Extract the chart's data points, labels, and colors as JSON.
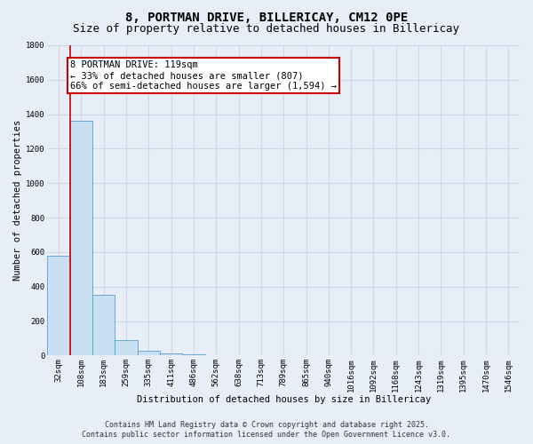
{
  "title_line1": "8, PORTMAN DRIVE, BILLERICAY, CM12 0PE",
  "title_line2": "Size of property relative to detached houses in Billericay",
  "xlabel": "Distribution of detached houses by size in Billericay",
  "ylabel": "Number of detached properties",
  "categories": [
    "32sqm",
    "108sqm",
    "183sqm",
    "259sqm",
    "335sqm",
    "411sqm",
    "486sqm",
    "562sqm",
    "638sqm",
    "713sqm",
    "789sqm",
    "865sqm",
    "940sqm",
    "1016sqm",
    "1092sqm",
    "1168sqm",
    "1243sqm",
    "1319sqm",
    "1395sqm",
    "1470sqm",
    "1546sqm"
  ],
  "values": [
    580,
    1360,
    350,
    90,
    30,
    15,
    5,
    0,
    0,
    0,
    0,
    0,
    0,
    0,
    0,
    0,
    0,
    0,
    0,
    0,
    0
  ],
  "bar_color": "#c9dff2",
  "bar_edge_color": "#5a9fd4",
  "background_color": "#e8eef8",
  "grid_color": "#d0d8e8",
  "annotation_box_text": "8 PORTMAN DRIVE: 119sqm\n← 33% of detached houses are smaller (807)\n66% of semi-detached houses are larger (1,594) →",
  "annotation_box_color": "#ffffff",
  "annotation_box_edge": "#cc0000",
  "vline_color": "#cc0000",
  "ylim": [
    0,
    1800
  ],
  "yticks": [
    0,
    200,
    400,
    600,
    800,
    1000,
    1200,
    1400,
    1600,
    1800
  ],
  "footer_line1": "Contains HM Land Registry data © Crown copyright and database right 2025.",
  "footer_line2": "Contains public sector information licensed under the Open Government Licence v3.0.",
  "title_fontsize": 10,
  "subtitle_fontsize": 9,
  "axis_label_fontsize": 7.5,
  "tick_fontsize": 6.5,
  "annotation_fontsize": 7.5,
  "footer_fontsize": 6
}
